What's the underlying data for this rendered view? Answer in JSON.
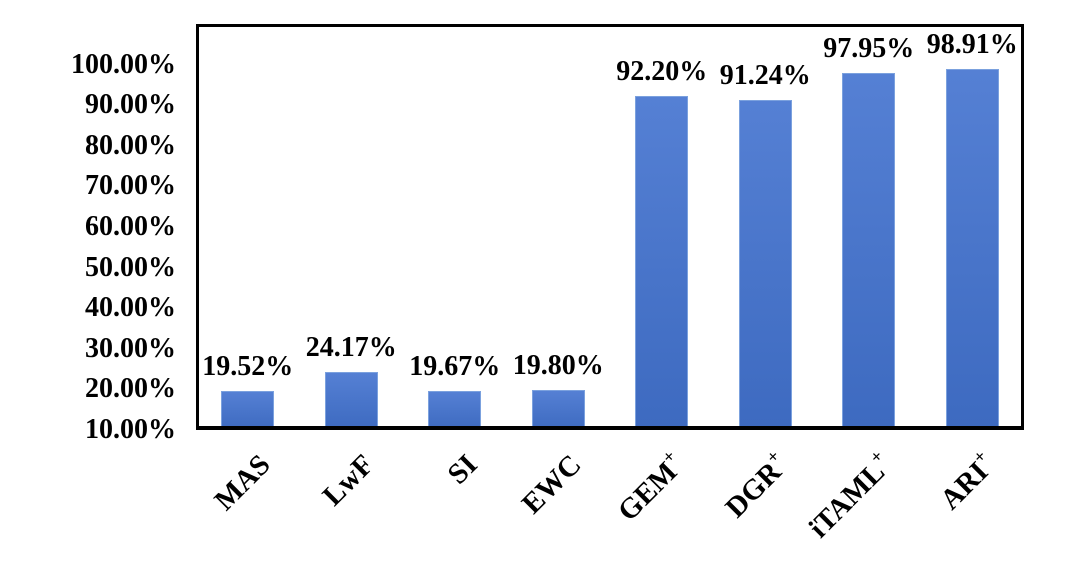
{
  "figure": {
    "background": "#ffffff"
  },
  "chart_data": {
    "type": "bar",
    "title": "",
    "xlabel": "",
    "ylabel": "",
    "categories": [
      "MAS",
      "LwF",
      "SI",
      "EWC",
      "GEM+",
      "DGR+",
      "iTAML+",
      "ARI+"
    ],
    "values": [
      19.52,
      24.17,
      19.67,
      19.8,
      92.2,
      91.24,
      97.95,
      98.91
    ],
    "value_labels": [
      "19.52%",
      "24.17%",
      "19.67%",
      "19.80%",
      "92.20%",
      "91.24%",
      "97.95%",
      "98.91%"
    ],
    "y_ticks": [
      {
        "value": 100,
        "label": "100.00%"
      },
      {
        "value": 90,
        "label": "90.00%"
      },
      {
        "value": 80,
        "label": "80.00%"
      },
      {
        "value": 70,
        "label": "70.00%"
      },
      {
        "value": 60,
        "label": "60.00%"
      },
      {
        "value": 50,
        "label": "50.00%"
      },
      {
        "value": 40,
        "label": "40.00%"
      },
      {
        "value": 30,
        "label": "30.00%"
      },
      {
        "value": 20,
        "label": "20.00%"
      },
      {
        "value": 10,
        "label": "10.00%"
      }
    ],
    "ylim": [
      10,
      110
    ],
    "grid": false,
    "legend_position": "none",
    "superscript_plus": true,
    "colors": {
      "bar_top": "#5580d4",
      "bar_bottom": "#3d6ac0",
      "bar_border": "#7ba1de",
      "axis": "#000000",
      "text": "#000000"
    }
  }
}
